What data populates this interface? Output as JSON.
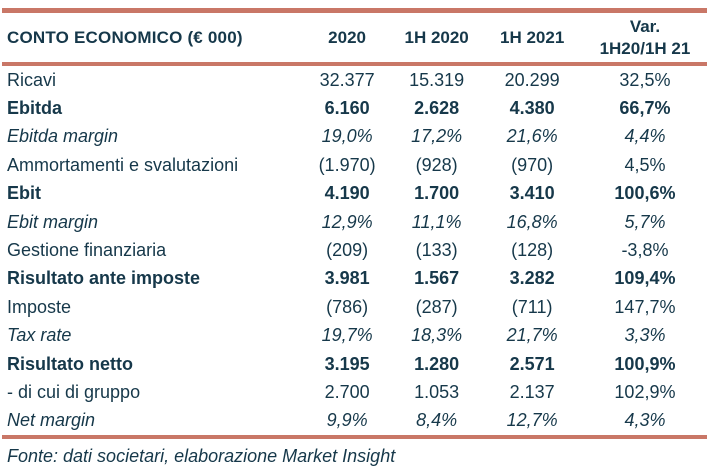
{
  "colors": {
    "accent_rule": "#c97767",
    "text": "#16384a",
    "background": "#ffffff"
  },
  "chart_data": {
    "type": "table",
    "title": "CONTO ECONOMICO (€ 000)",
    "units": "€ 000",
    "columns": [
      {
        "label": "2020"
      },
      {
        "label": "1H 2020"
      },
      {
        "label": "1H 2021"
      },
      {
        "label": "Var.",
        "sublabel": "1H20/1H 21"
      }
    ],
    "rows": [
      {
        "label": "Ricavi",
        "emphasis": "normal",
        "values": [
          "32.377",
          "15.319",
          "20.299",
          "32,5%"
        ]
      },
      {
        "label": "Ebitda",
        "emphasis": "bold",
        "values": [
          "6.160",
          "2.628",
          "4.380",
          "66,7%"
        ]
      },
      {
        "label": "Ebitda margin",
        "emphasis": "italic",
        "values": [
          "19,0%",
          "17,2%",
          "21,6%",
          "4,4%"
        ]
      },
      {
        "label": "Ammortamenti e svalutazioni",
        "emphasis": "normal",
        "values": [
          "(1.970)",
          "(928)",
          "(970)",
          "4,5%"
        ]
      },
      {
        "label": "Ebit",
        "emphasis": "bold",
        "values": [
          "4.190",
          "1.700",
          "3.410",
          "100,6%"
        ]
      },
      {
        "label": "Ebit margin",
        "emphasis": "italic",
        "values": [
          "12,9%",
          "11,1%",
          "16,8%",
          "5,7%"
        ]
      },
      {
        "label": "Gestione finanziaria",
        "emphasis": "normal",
        "values": [
          "(209)",
          "(133)",
          "(128)",
          "-3,8%"
        ]
      },
      {
        "label": "Risultato ante imposte",
        "emphasis": "bold",
        "values": [
          "3.981",
          "1.567",
          "3.282",
          "109,4%"
        ]
      },
      {
        "label": "Imposte",
        "emphasis": "normal",
        "values": [
          "(786)",
          "(287)",
          "(711)",
          "147,7%"
        ]
      },
      {
        "label": "Tax rate",
        "emphasis": "italic",
        "values": [
          "19,7%",
          "18,3%",
          "21,7%",
          "3,3%"
        ]
      },
      {
        "label": "Risultato netto",
        "emphasis": "bold",
        "values": [
          "3.195",
          "1.280",
          "2.571",
          "100,9%"
        ]
      },
      {
        "label": "- di cui di gruppo",
        "emphasis": "normal",
        "values": [
          "2.700",
          "1.053",
          "2.137",
          "102,9%"
        ]
      },
      {
        "label": "Net margin",
        "emphasis": "italic",
        "values": [
          "9,9%",
          "8,4%",
          "12,7%",
          "4,3%"
        ]
      }
    ],
    "footer": "Fonte: dati societari, elaborazione Market Insight"
  }
}
